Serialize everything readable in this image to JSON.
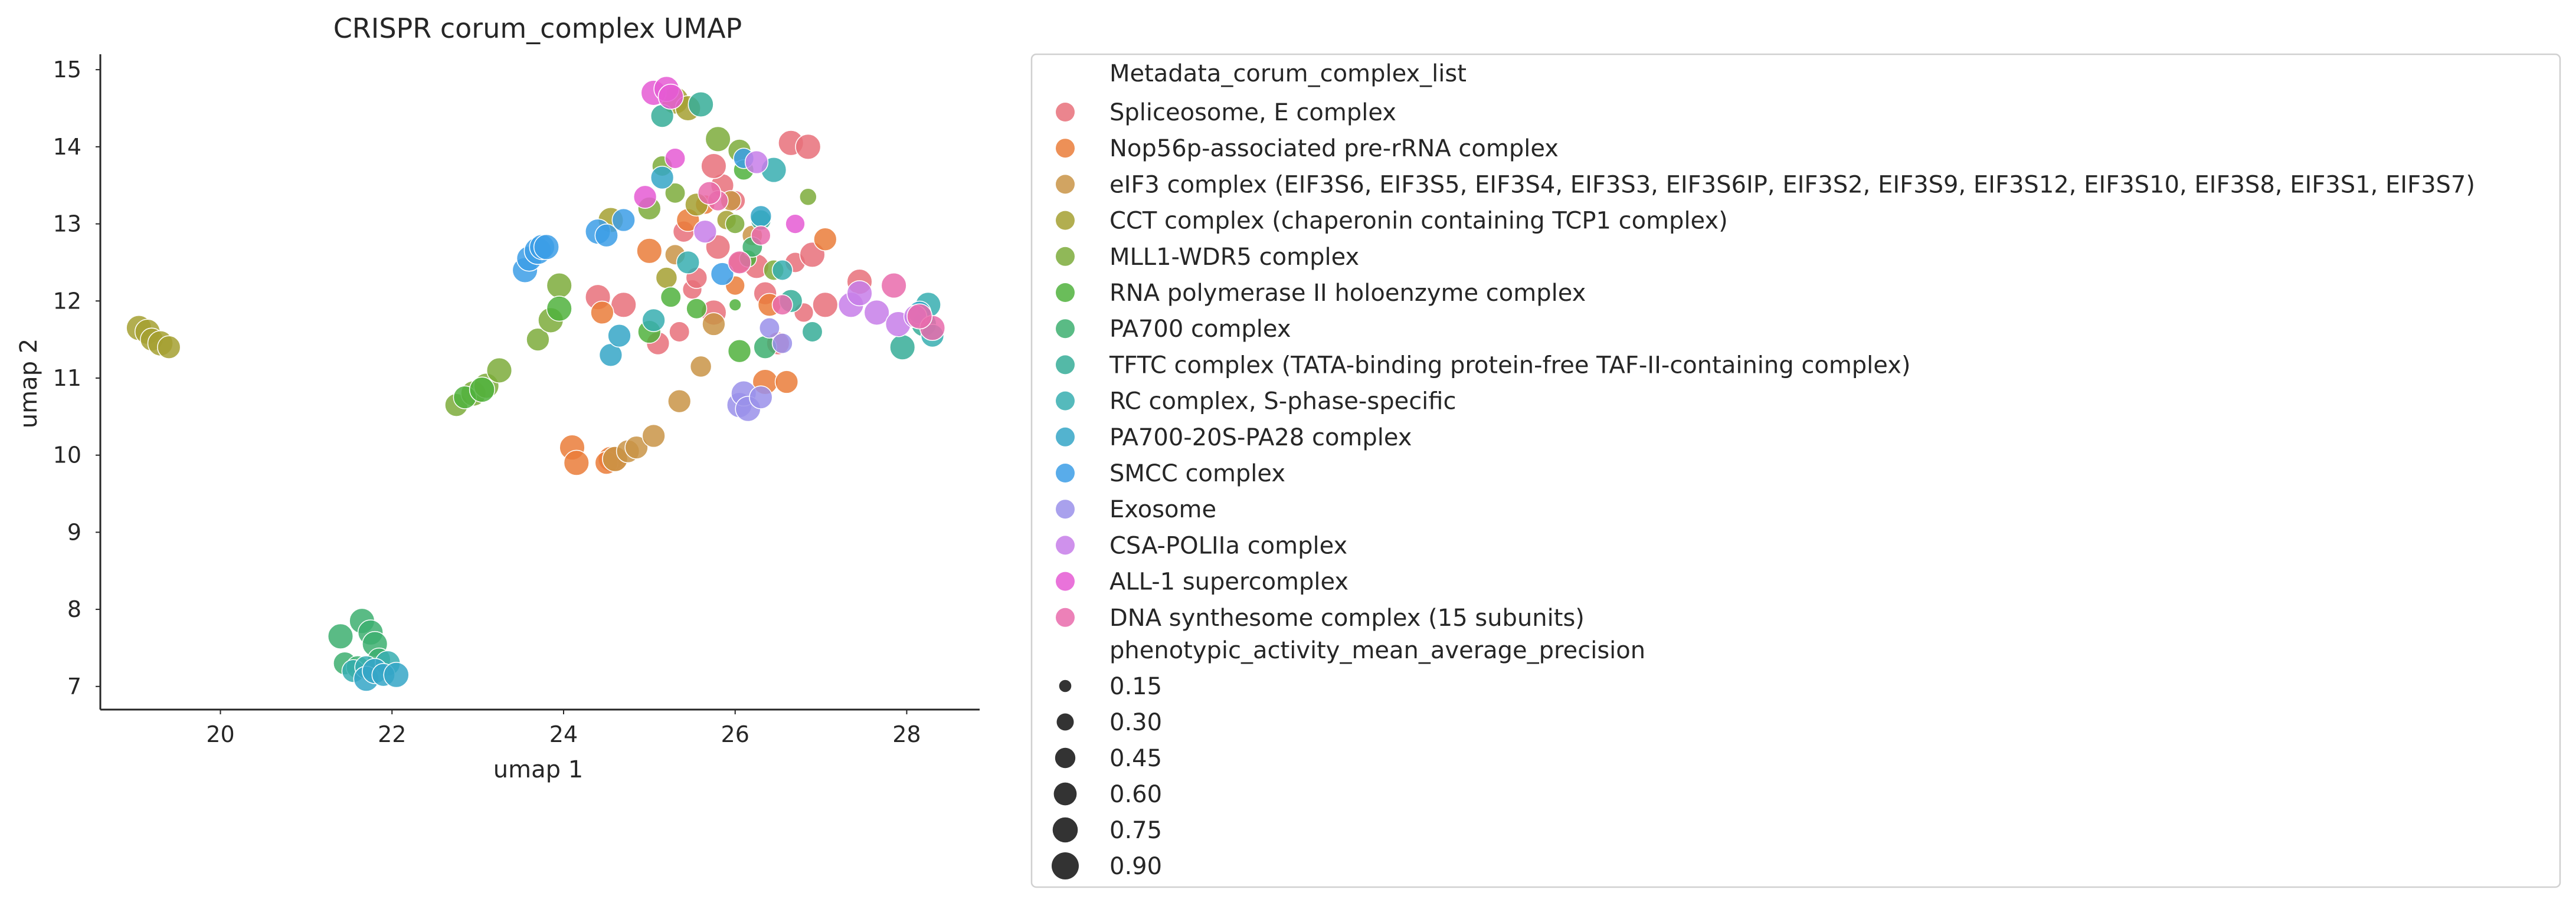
{
  "chart_data": {
    "type": "scatter",
    "title": "CRISPR corum_complex UMAP",
    "xlabel": "umap 1",
    "ylabel": "umap 2",
    "xlim": [
      18.6,
      28.85
    ],
    "ylim": [
      6.7,
      15.2
    ],
    "xticks": [
      20,
      22,
      24,
      26,
      28
    ],
    "yticks": [
      7,
      8,
      9,
      10,
      11,
      12,
      13,
      14,
      15
    ],
    "grid": false,
    "legend_placement": "outside right",
    "hue_title": "Metadata_corum_complex_list",
    "size_title": "phenotypic_activity_mean_average_precision",
    "size_levels": [
      0.15,
      0.3,
      0.45,
      0.6,
      0.75,
      0.9
    ],
    "series": [
      {
        "name": "Spliceosome, E complex",
        "color": "#e8707a",
        "points": [
          [
            24.4,
            12.05,
            0.75
          ],
          [
            24.7,
            11.95,
            0.75
          ],
          [
            25.1,
            11.45,
            0.6
          ],
          [
            25.5,
            12.15,
            0.4
          ],
          [
            25.4,
            12.9,
            0.5
          ],
          [
            25.55,
            12.3,
            0.5
          ],
          [
            25.75,
            11.85,
            0.75
          ],
          [
            25.8,
            12.7,
            0.7
          ],
          [
            25.85,
            13.5,
            0.6
          ],
          [
            26.0,
            13.3,
            0.45
          ],
          [
            26.25,
            12.45,
            0.7
          ],
          [
            26.35,
            12.1,
            0.6
          ],
          [
            26.5,
            11.45,
            0.6
          ],
          [
            26.65,
            14.05,
            0.75
          ],
          [
            26.85,
            14.0,
            0.75
          ],
          [
            26.7,
            12.5,
            0.45
          ],
          [
            26.8,
            11.85,
            0.4
          ],
          [
            26.9,
            12.6,
            0.75
          ],
          [
            27.05,
            11.95,
            0.75
          ],
          [
            27.45,
            12.25,
            0.75
          ],
          [
            25.75,
            13.75,
            0.75
          ],
          [
            25.35,
            11.6,
            0.45
          ]
        ]
      },
      {
        "name": "Nop56p-associated pre-rRNA complex",
        "color": "#ea7d39",
        "points": [
          [
            24.1,
            10.1,
            0.75
          ],
          [
            24.15,
            9.9,
            0.75
          ],
          [
            24.55,
            9.95,
            0.75
          ],
          [
            24.5,
            9.9,
            0.6
          ],
          [
            24.6,
            9.95,
            0.75
          ],
          [
            24.45,
            11.85,
            0.6
          ],
          [
            25.0,
            12.65,
            0.75
          ],
          [
            25.45,
            13.05,
            0.6
          ],
          [
            26.05,
            12.5,
            0.5
          ],
          [
            26.4,
            11.95,
            0.6
          ],
          [
            26.35,
            10.95,
            0.75
          ],
          [
            26.6,
            10.95,
            0.6
          ],
          [
            27.05,
            12.8,
            0.6
          ],
          [
            26.0,
            12.2,
            0.4
          ],
          [
            25.65,
            13.25,
            0.4
          ]
        ]
      },
      {
        "name": "eIF3 complex (EIF3S6, EIF3S5, EIF3S4, EIF3S3, EIF3S6IP, EIF3S2, EIF3S9, EIF3S12,  EIF3S10, EIF3S8,  EIF3S1, EIF3S7)",
        "color": "#c99446",
        "points": [
          [
            24.6,
            9.95,
            0.75
          ],
          [
            24.75,
            10.05,
            0.6
          ],
          [
            24.85,
            10.1,
            0.6
          ],
          [
            25.05,
            10.25,
            0.6
          ],
          [
            25.35,
            10.7,
            0.6
          ],
          [
            25.6,
            11.15,
            0.5
          ],
          [
            25.75,
            11.7,
            0.6
          ],
          [
            25.3,
            12.6,
            0.45
          ],
          [
            26.2,
            12.85,
            0.45
          ],
          [
            25.95,
            13.3,
            0.45
          ]
        ]
      },
      {
        "name": "CCT complex (chaperonin containing TCP1 complex)",
        "color": "#a5a031",
        "points": [
          [
            19.05,
            11.65,
            0.75
          ],
          [
            19.15,
            11.6,
            0.75
          ],
          [
            19.2,
            11.5,
            0.6
          ],
          [
            19.3,
            11.45,
            0.75
          ],
          [
            19.4,
            11.4,
            0.6
          ],
          [
            24.55,
            13.05,
            0.75
          ],
          [
            25.2,
            12.3,
            0.5
          ],
          [
            25.55,
            13.25,
            0.6
          ],
          [
            25.9,
            13.05,
            0.4
          ],
          [
            25.3,
            14.6,
            0.9
          ],
          [
            25.45,
            14.5,
            0.75
          ]
        ]
      },
      {
        "name": "MLL1-WDR5 complex",
        "color": "#7cab3b",
        "points": [
          [
            22.75,
            10.65,
            0.6
          ],
          [
            22.95,
            10.8,
            0.75
          ],
          [
            23.1,
            10.9,
            0.75
          ],
          [
            23.25,
            11.1,
            0.75
          ],
          [
            23.7,
            11.5,
            0.6
          ],
          [
            23.85,
            11.75,
            0.75
          ],
          [
            23.95,
            12.2,
            0.75
          ],
          [
            25.15,
            13.75,
            0.45
          ],
          [
            25.3,
            13.4,
            0.45
          ],
          [
            25.8,
            14.1,
            0.75
          ],
          [
            26.05,
            13.95,
            0.6
          ],
          [
            26.0,
            13.0,
            0.4
          ],
          [
            26.45,
            12.4,
            0.45
          ],
          [
            26.85,
            13.35,
            0.3
          ],
          [
            25.0,
            13.2,
            0.6
          ]
        ]
      },
      {
        "name": "RNA polymerase II holoenzyme complex",
        "color": "#50b13d",
        "points": [
          [
            22.85,
            10.75,
            0.6
          ],
          [
            23.05,
            10.85,
            0.75
          ],
          [
            23.95,
            11.9,
            0.75
          ],
          [
            25.0,
            11.6,
            0.6
          ],
          [
            25.25,
            12.05,
            0.45
          ],
          [
            25.55,
            11.9,
            0.45
          ],
          [
            26.05,
            11.35,
            0.6
          ],
          [
            26.1,
            13.7,
            0.45
          ],
          [
            26.15,
            12.55,
            0.3
          ],
          [
            26.0,
            11.95,
            0.15
          ]
        ]
      },
      {
        "name": "PA700 complex",
        "color": "#3daf70",
        "points": [
          [
            21.4,
            7.65,
            0.75
          ],
          [
            21.45,
            7.3,
            0.6
          ],
          [
            21.6,
            7.25,
            0.6
          ],
          [
            21.65,
            7.85,
            0.75
          ],
          [
            21.75,
            7.7,
            0.75
          ],
          [
            21.8,
            7.55,
            0.75
          ],
          [
            21.85,
            7.35,
            0.6
          ],
          [
            26.35,
            11.4,
            0.6
          ],
          [
            26.2,
            12.7,
            0.45
          ]
        ]
      },
      {
        "name": "TFTC complex (TATA-binding protein-free TAF-II-containing complex)",
        "color": "#36ad98",
        "points": [
          [
            25.15,
            14.4,
            0.6
          ],
          [
            25.6,
            14.55,
            0.75
          ],
          [
            26.3,
            13.05,
            0.45
          ],
          [
            26.65,
            12.0,
            0.6
          ],
          [
            26.9,
            11.6,
            0.45
          ],
          [
            27.95,
            11.4,
            0.75
          ],
          [
            28.2,
            11.7,
            0.75
          ]
        ]
      },
      {
        "name": "RC complex, S-phase-specific",
        "color": "#37aeb0",
        "points": [
          [
            21.55,
            7.2,
            0.6
          ],
          [
            21.7,
            7.25,
            0.6
          ],
          [
            21.95,
            7.3,
            0.75
          ],
          [
            25.05,
            11.75,
            0.6
          ],
          [
            25.45,
            12.5,
            0.6
          ],
          [
            26.45,
            13.7,
            0.75
          ],
          [
            26.55,
            12.4,
            0.45
          ],
          [
            28.25,
            11.95,
            0.75
          ],
          [
            28.3,
            11.55,
            0.6
          ]
        ]
      },
      {
        "name": "PA700-20S-PA28 complex",
        "color": "#35a6c7",
        "points": [
          [
            21.7,
            7.1,
            0.75
          ],
          [
            21.8,
            7.2,
            0.75
          ],
          [
            21.9,
            7.15,
            0.6
          ],
          [
            22.05,
            7.15,
            0.75
          ],
          [
            24.55,
            11.3,
            0.6
          ],
          [
            24.65,
            11.55,
            0.6
          ],
          [
            25.15,
            13.6,
            0.6
          ],
          [
            26.3,
            13.1,
            0.5
          ],
          [
            28.15,
            11.85,
            0.6
          ]
        ]
      },
      {
        "name": "SMCC complex",
        "color": "#3c9ee6",
        "points": [
          [
            23.55,
            12.4,
            0.75
          ],
          [
            23.6,
            12.55,
            0.75
          ],
          [
            23.7,
            12.65,
            0.9
          ],
          [
            23.75,
            12.7,
            0.75
          ],
          [
            23.8,
            12.7,
            0.75
          ],
          [
            24.4,
            12.9,
            0.75
          ],
          [
            24.5,
            12.85,
            0.6
          ],
          [
            24.7,
            13.05,
            0.6
          ],
          [
            25.85,
            12.35,
            0.6
          ],
          [
            26.1,
            13.85,
            0.45
          ]
        ]
      },
      {
        "name": "Exosome",
        "color": "#9a90ea",
        "points": [
          [
            26.05,
            10.65,
            0.75
          ],
          [
            26.1,
            10.8,
            0.75
          ],
          [
            26.15,
            10.6,
            0.75
          ],
          [
            26.3,
            10.75,
            0.6
          ],
          [
            26.4,
            11.65,
            0.45
          ],
          [
            26.55,
            11.45,
            0.45
          ]
        ]
      },
      {
        "name": "CSA-POLIIa complex",
        "color": "#c77ee9",
        "points": [
          [
            25.65,
            12.9,
            0.6
          ],
          [
            26.25,
            13.8,
            0.6
          ],
          [
            27.35,
            11.95,
            0.75
          ],
          [
            27.45,
            12.1,
            0.75
          ],
          [
            27.65,
            11.85,
            0.75
          ],
          [
            27.9,
            11.7,
            0.75
          ],
          [
            28.1,
            11.8,
            0.6
          ]
        ]
      },
      {
        "name": "ALL-1 supercomplex",
        "color": "#e55bd3",
        "points": [
          [
            25.05,
            14.7,
            0.75
          ],
          [
            25.2,
            14.75,
            0.75
          ],
          [
            25.25,
            14.65,
            0.75
          ],
          [
            24.95,
            13.35,
            0.6
          ],
          [
            25.3,
            13.85,
            0.45
          ],
          [
            26.7,
            13.0,
            0.4
          ]
        ]
      },
      {
        "name": "DNA synthesome complex (15 subunits)",
        "color": "#e96bac",
        "points": [
          [
            25.8,
            13.3,
            0.45
          ],
          [
            26.05,
            12.5,
            0.6
          ],
          [
            26.3,
            12.85,
            0.4
          ],
          [
            26.55,
            11.95,
            0.45
          ],
          [
            27.85,
            12.2,
            0.75
          ],
          [
            28.3,
            11.65,
            0.75
          ],
          [
            28.15,
            11.8,
            0.75
          ],
          [
            25.7,
            13.4,
            0.6
          ]
        ]
      }
    ]
  }
}
